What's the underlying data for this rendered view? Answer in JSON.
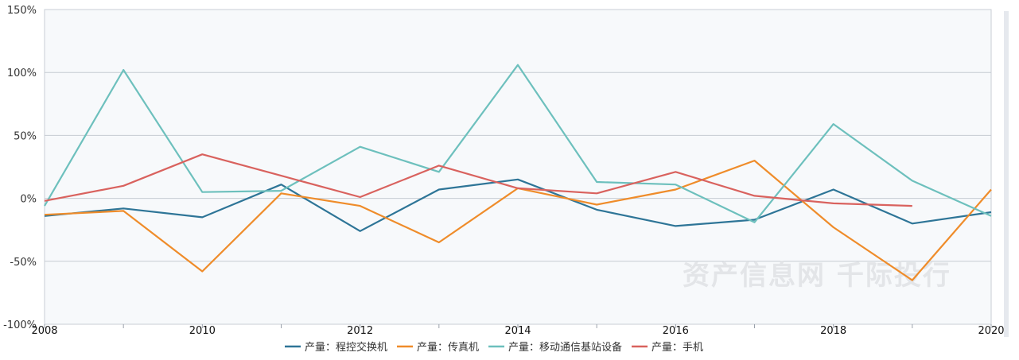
{
  "chart_data": {
    "type": "line",
    "x": [
      2008,
      2009,
      2010,
      2011,
      2012,
      2013,
      2014,
      2015,
      2016,
      2017,
      2018,
      2019,
      2020
    ],
    "x_tick_labels": [
      "2008",
      "2010",
      "2012",
      "2014",
      "2016",
      "2018",
      "2020"
    ],
    "y_tick_labels": [
      "150%",
      "100%",
      "50%",
      "0%",
      "-50%",
      "-100%"
    ],
    "ylim": [
      -100,
      150
    ],
    "y_unit": "%",
    "grid": true,
    "legend_position": "bottom",
    "series": [
      {
        "name": "产量：程控交换机",
        "color": "#2e7597",
        "values": [
          -14,
          -8,
          -15,
          11,
          -26,
          7,
          15,
          -9,
          -22,
          -17,
          7,
          -20,
          -11
        ]
      },
      {
        "name": "产量：传真机",
        "color": "#ef8c2a",
        "values": [
          -13,
          -10,
          -58,
          4,
          -6,
          -35,
          8,
          -5,
          7,
          30,
          -23,
          -65,
          7
        ]
      },
      {
        "name": "产量：移动通信基站设备",
        "color": "#6dc0bd",
        "values": [
          -6,
          102,
          5,
          6,
          41,
          21,
          106,
          13,
          11,
          -19,
          59,
          14,
          -14
        ]
      },
      {
        "name": "产量：手机",
        "color": "#d9625e",
        "values": [
          -2,
          10,
          35,
          18,
          1,
          26,
          8,
          4,
          21,
          2,
          -4,
          -6,
          null
        ]
      }
    ]
  },
  "watermark": "资产信息网 千际投行"
}
